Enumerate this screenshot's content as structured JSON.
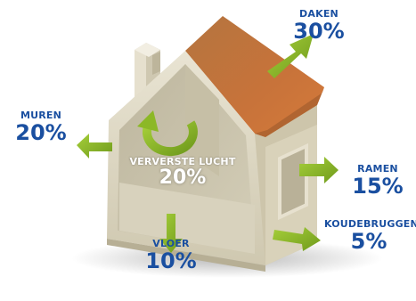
{
  "labels": {
    "daken": {
      "name": "DAKEN",
      "value": "30%"
    },
    "muren": {
      "name": "MUREN",
      "value": "20%"
    },
    "ververste_lucht": {
      "name": "VERVERSTE LUCHT",
      "value": "20%"
    },
    "ramen": {
      "name": "RAMEN",
      "value": "15%"
    },
    "vloer": {
      "name": "VLOER",
      "value": "10%"
    },
    "koudebruggen": {
      "name": "KOUDEBRUGGEN",
      "value": "5%"
    }
  },
  "colors": {
    "label_blue": "#1a4fa0",
    "arrow_green": "#8cb827",
    "roof_brown": "#c5713a",
    "wall_beige": "#dcd6c1",
    "wall_inner": "#c9c2aa"
  },
  "icons": [
    "arrow-icon",
    "circular-arrow-icon"
  ]
}
